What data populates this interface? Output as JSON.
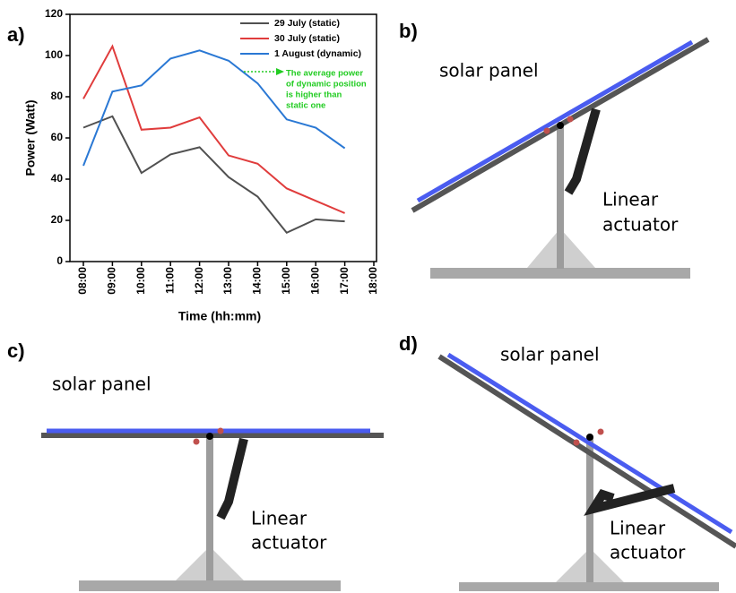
{
  "chart_data": {
    "type": "line",
    "x_label": "Time (hh:mm)",
    "y_label": "Power (Watt)",
    "categories": [
      "08:00",
      "09:00",
      "10:00",
      "11:00",
      "12:00",
      "13:00",
      "14:00",
      "15:00",
      "16:00",
      "17:00",
      "18:00"
    ],
    "series": [
      {
        "name": "29 July (static)",
        "color": "#505050",
        "values": [
          65,
          70.5,
          43,
          52,
          55.5,
          41,
          31.5,
          14,
          20.5,
          19.5,
          null
        ]
      },
      {
        "name": "30 July (static)",
        "color": "#e03c3c",
        "values": [
          79,
          104.5,
          64,
          65,
          70,
          51.5,
          47.5,
          35.5,
          29.5,
          23.5,
          null
        ]
      },
      {
        "name": "1 August (dynamic)",
        "color": "#2a78d4",
        "values": [
          46.5,
          82.5,
          85.5,
          98.5,
          102.5,
          97.5,
          86.5,
          69,
          65,
          55,
          null
        ]
      }
    ],
    "ylim": [
      0,
      120
    ],
    "yticks": [
      0,
      20,
      40,
      60,
      80,
      100,
      120
    ],
    "annotation": [
      "The average power",
      "of dynamic position",
      "is higher than",
      "static one"
    ],
    "annotation_color": "#22cc22"
  },
  "panels": {
    "labels": [
      "a)",
      "b)",
      "c)",
      "d)"
    ],
    "diagrams": [
      {
        "panel_text": "solar panel",
        "actuator_text": [
          "Linear",
          "actuator"
        ]
      },
      {
        "panel_text": "solar panel",
        "actuator_text": [
          "Linear",
          "actuator"
        ]
      },
      {
        "panel_text": "solar panel",
        "actuator_text": [
          "Linear",
          "actuator"
        ]
      }
    ]
  }
}
